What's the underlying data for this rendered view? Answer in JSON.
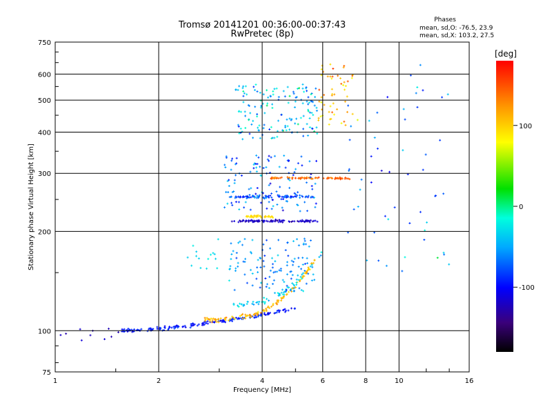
{
  "chart_data": {
    "type": "scatter",
    "title": "Tromsø 20141201 00:36:00-00:37:43",
    "subtitle": "RwPretec (8p)",
    "xlabel": "Frequency [MHz]",
    "ylabel": "Stationary phase Virtual Height [km]",
    "x_scale": "log",
    "y_scale": "log",
    "xlim": [
      1,
      16
    ],
    "ylim": [
      75,
      750
    ],
    "x_ticks": [
      1,
      2,
      4,
      6,
      8,
      10,
      16
    ],
    "y_ticks": [
      75,
      100,
      200,
      300,
      400,
      500,
      600,
      750
    ],
    "x_tick_labels": [
      "1",
      "2",
      "4",
      "6",
      "8",
      "10",
      "16"
    ],
    "y_tick_labels": [
      "75",
      "100",
      "200",
      "300",
      "400",
      "500",
      "600",
      "750"
    ],
    "grid": true,
    "legend": {
      "heading": "Phases",
      "line1": "mean, sd,O: -76.5, 23.9",
      "line2": "mean, sd,X: 103.2, 27.5"
    },
    "colorbar": {
      "label": "[deg]",
      "range": [
        -180,
        180
      ],
      "ticks": [
        100,
        0,
        -100
      ],
      "tick_labels": [
        "100",
        "0",
        "-100"
      ]
    },
    "series": [
      {
        "kind": "trace",
        "x_range": [
          1.55,
          5.0
        ],
        "h_start": 100,
        "h_end": 117,
        "curve": 1.6,
        "n": 170,
        "jitter": 0.018,
        "phase_center": -95,
        "phase_spread": 25
      },
      {
        "kind": "trace",
        "x_range": [
          2.7,
          5.7
        ],
        "h_start": 108,
        "h_end": 165,
        "curve": 3.0,
        "n": 120,
        "jitter": 0.025,
        "phase_center": 110,
        "phase_spread": 35
      },
      {
        "kind": "trace",
        "x_range": [
          3.3,
          6.0
        ],
        "h_start": 120,
        "h_end": 175,
        "curve": 2.5,
        "n": 60,
        "jitter": 0.03,
        "phase_center": -40,
        "phase_spread": 40
      },
      {
        "kind": "cluster",
        "x_range": [
          3.2,
          5.7
        ],
        "h_range": [
          130,
          190
        ],
        "n": 120,
        "phase_center": -60,
        "phase_spread": 45
      },
      {
        "kind": "band",
        "x_range": [
          3.2,
          5.8
        ],
        "h": 215,
        "n": 90,
        "jitter": 0.012,
        "phase_center": -120,
        "phase_spread": 20
      },
      {
        "kind": "band",
        "x_range": [
          3.6,
          4.3
        ],
        "h": 222,
        "n": 35,
        "jitter": 0.01,
        "phase_center": 95,
        "phase_spread": 10
      },
      {
        "kind": "band",
        "x_range": [
          3.2,
          5.8
        ],
        "h": 255,
        "n": 70,
        "jitter": 0.014,
        "phase_center": -80,
        "phase_spread": 40
      },
      {
        "kind": "band",
        "x_range": [
          4.2,
          7.2
        ],
        "h": 290,
        "n": 80,
        "jitter": 0.01,
        "phase_center": 140,
        "phase_spread": 35
      },
      {
        "kind": "cluster",
        "x_range": [
          3.1,
          5.8
        ],
        "h_range": [
          230,
          340
        ],
        "n": 130,
        "phase_center": -70,
        "phase_spread": 60
      },
      {
        "kind": "cluster",
        "x_range": [
          3.3,
          5.8
        ],
        "h_range": [
          380,
          560
        ],
        "n": 150,
        "phase_center": -40,
        "phase_spread": 70
      },
      {
        "kind": "cluster",
        "x_range": [
          5.8,
          7.6
        ],
        "h_range": [
          420,
          660
        ],
        "n": 55,
        "phase_center": 110,
        "phase_spread": 60
      },
      {
        "kind": "cluster",
        "x_range": [
          7.0,
          14.5
        ],
        "h_range": [
          150,
          650
        ],
        "n": 55,
        "phase_center": -60,
        "phase_spread": 80
      },
      {
        "kind": "cluster",
        "x_range": [
          2.4,
          3.0
        ],
        "h_range": [
          150,
          190
        ],
        "n": 15,
        "phase_center": -30,
        "phase_spread": 20
      },
      {
        "kind": "cluster",
        "x_range": [
          1.0,
          1.6
        ],
        "h_range": [
          93,
          102
        ],
        "n": 10,
        "phase_center": -120,
        "phase_spread": 15
      }
    ]
  }
}
